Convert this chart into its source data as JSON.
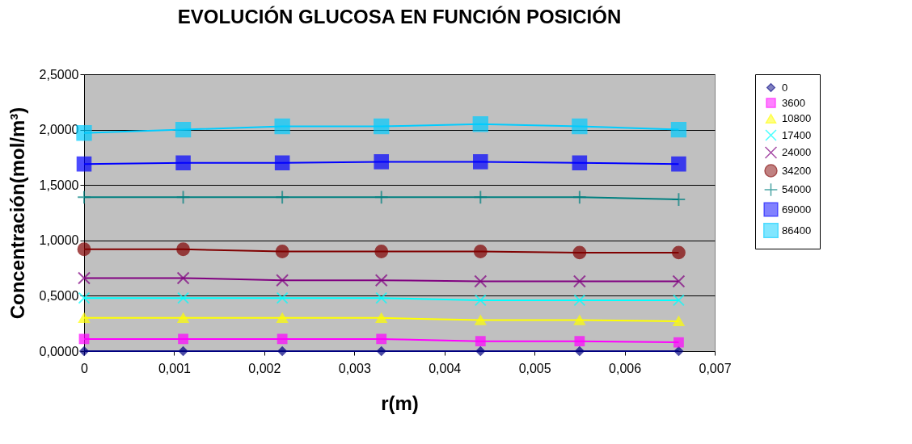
{
  "chart_data": {
    "type": "line",
    "title": "EVOLUCIÓN GLUCOSA EN FUNCIÓN POSICIÓN",
    "xlabel": "r(m)",
    "ylabel": "Concentración(mol/m³)",
    "x": [
      0,
      0.0011,
      0.0022,
      0.0033,
      0.0044,
      0.0055,
      0.0066
    ],
    "xlim": [
      0,
      0.007
    ],
    "xticks": [
      0,
      {
        "value": 0.001,
        "label": "0,001"
      },
      {
        "value": 0.002,
        "label": "0,002"
      },
      {
        "value": 0.003,
        "label": "0,003"
      },
      {
        "value": 0.004,
        "label": "0,004"
      },
      {
        "value": 0.005,
        "label": "0,005"
      },
      {
        "value": 0.006,
        "label": "0,006"
      },
      {
        "value": 0.007,
        "label": "0,007"
      }
    ],
    "ylim": [
      0,
      2.5
    ],
    "yticks": [
      {
        "value": 0,
        "label": "0,0000"
      },
      {
        "value": 0.5,
        "label": "0,5000"
      },
      {
        "value": 1,
        "label": "1,0000"
      },
      {
        "value": 1.5,
        "label": "1,5000"
      },
      {
        "value": 2,
        "label": "2,0000"
      },
      {
        "value": 2.5,
        "label": "2,5000"
      }
    ],
    "grid": "y",
    "legend": "right",
    "series": [
      {
        "name": "0",
        "color": "#000080",
        "marker": "diamond",
        "values": [
          0,
          0,
          0,
          0,
          0,
          0,
          0
        ]
      },
      {
        "name": "3600",
        "color": "#ff00ff",
        "marker": "square",
        "values": [
          0.11,
          0.11,
          0.11,
          0.11,
          0.09,
          0.09,
          0.08
        ]
      },
      {
        "name": "10800",
        "color": "#ffff00",
        "marker": "triangle",
        "values": [
          0.3,
          0.3,
          0.3,
          0.3,
          0.28,
          0.28,
          0.27
        ]
      },
      {
        "name": "17400",
        "color": "#00ffff",
        "marker": "cross",
        "values": [
          0.48,
          0.48,
          0.48,
          0.48,
          0.46,
          0.46,
          0.46
        ]
      },
      {
        "name": "24000",
        "color": "#800080",
        "marker": "cross",
        "values": [
          0.66,
          0.66,
          0.64,
          0.64,
          0.63,
          0.63,
          0.63
        ]
      },
      {
        "name": "34200",
        "color": "#800000",
        "marker": "circle",
        "values": [
          0.92,
          0.92,
          0.9,
          0.9,
          0.9,
          0.89,
          0.89
        ]
      },
      {
        "name": "54000",
        "color": "#008080",
        "marker": "plus",
        "values": [
          1.39,
          1.39,
          1.39,
          1.39,
          1.39,
          1.39,
          1.37
        ]
      },
      {
        "name": "69000",
        "color": "#0000ff",
        "marker": "square",
        "values": [
          1.69,
          1.7,
          1.7,
          1.71,
          1.71,
          1.7,
          1.69
        ]
      },
      {
        "name": "86400",
        "color": "#00ccff",
        "marker": "square",
        "values": [
          1.97,
          2.0,
          2.03,
          2.03,
          2.05,
          2.03,
          2.0
        ]
      }
    ]
  }
}
